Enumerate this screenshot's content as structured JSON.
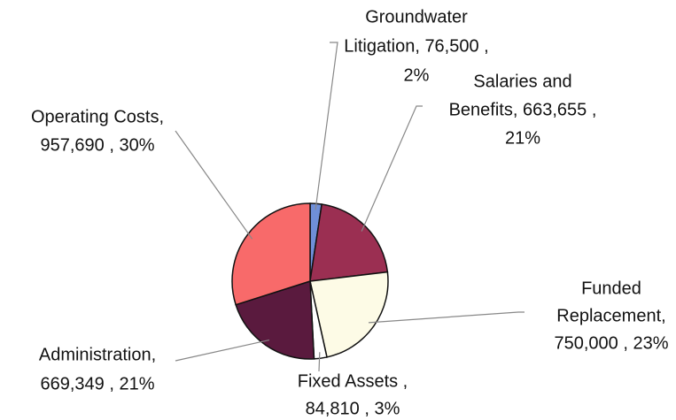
{
  "chart_data": {
    "type": "pie",
    "categories": [
      "Groundwater Litigation",
      "Salaries and Benefits",
      "Funded Replacement",
      "Fixed Assets",
      "Administration",
      "Operating Costs"
    ],
    "values": [
      76500,
      663655,
      750000,
      84810,
      669349,
      957690
    ],
    "labels": [
      [
        "Groundwater",
        "Litigation, 76,500 ,",
        "2%"
      ],
      [
        "Salaries and",
        "Benefits, 663,655 ,",
        "21%"
      ],
      [
        "Funded",
        "Replacement,",
        "750,000 , 23%"
      ],
      [
        "Fixed Assets ,",
        "84,810 , 3%"
      ],
      [
        "Administration,",
        "669,349 , 21%"
      ],
      [
        "Operating Costs,",
        "957,690 , 30%"
      ]
    ],
    "colors": [
      "#6f8fd8",
      "#9b2f52",
      "#fdfbe6",
      "#ffffff",
      "#5a1a3e",
      "#f86a6a"
    ]
  }
}
